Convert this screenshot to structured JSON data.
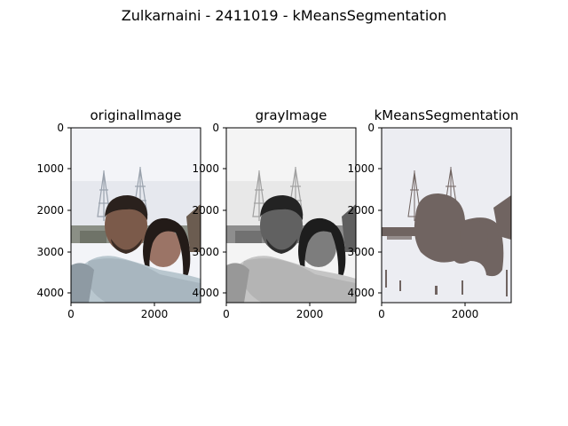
{
  "figure": {
    "title": "Zulkarnaini - 2411019 - kMeansSegmentation"
  },
  "panels": [
    {
      "title": "originalImage",
      "kind": "color-photo",
      "y_ticks": [
        "0",
        "1000",
        "2000",
        "3000",
        "4000"
      ],
      "x_ticks": [
        "0",
        "2000"
      ]
    },
    {
      "title": "grayImage",
      "kind": "grayscale-photo",
      "y_ticks": [
        "0",
        "1000",
        "2000",
        "3000",
        "4000"
      ],
      "x_ticks": [
        "0",
        "2000"
      ]
    },
    {
      "title": "kMeansSegmentation",
      "kind": "two-cluster-segmentation",
      "y_ticks": [
        "0",
        "1000",
        "2000",
        "3000",
        "4000"
      ],
      "x_ticks": [
        "0",
        "2000"
      ]
    }
  ],
  "colors": {
    "seg_light": "#ecedf2",
    "seg_dark": "#706461",
    "sky_light": "#f3f4f8",
    "shirt": "#b9c7cf"
  }
}
